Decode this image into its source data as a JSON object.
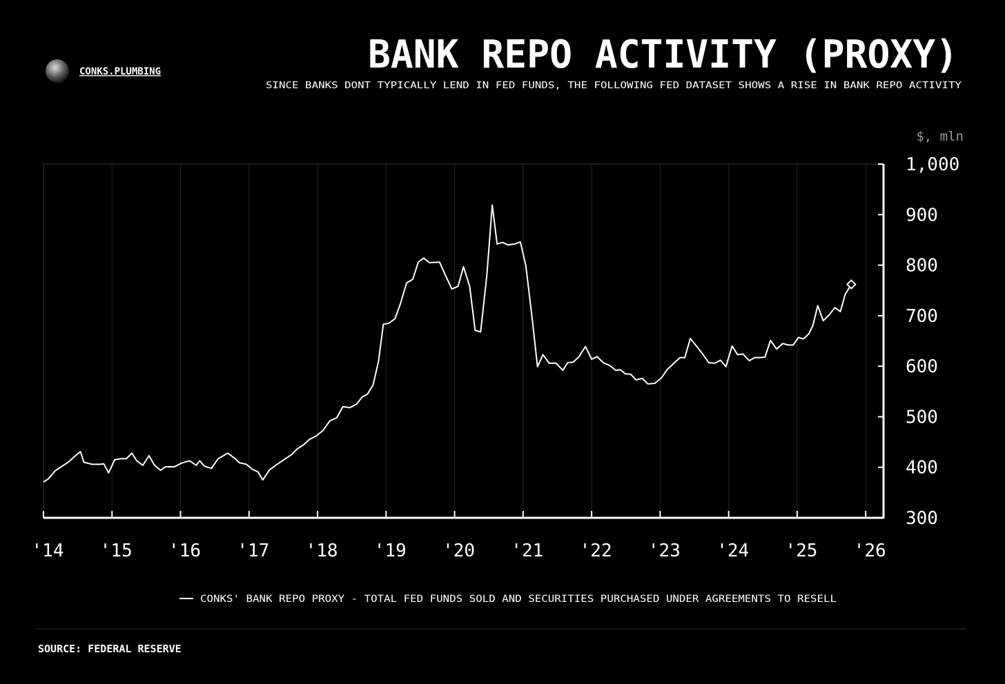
{
  "chart_data": {
    "type": "line",
    "brand": "CONKS.PLUMBING",
    "title": "BANK REPO ACTIVITY (PROXY)",
    "subtitle": "SINCE BANKS DONT TYPICALLY LEND IN FED FUNDS, THE FOLLOWING FED DATASET SHOWS A RISE IN BANK REPO ACTIVITY",
    "y_label": "$, mln",
    "source": "SOURCE: FEDERAL RESERVE",
    "x": [
      2014.0,
      2014.07,
      2014.17,
      2014.27,
      2014.37,
      2014.45,
      2014.54,
      2014.59,
      2014.71,
      2014.83,
      2014.88,
      2014.95,
      2015.04,
      2015.13,
      2015.21,
      2015.29,
      2015.36,
      2015.45,
      2015.54,
      2015.62,
      2015.71,
      2015.78,
      2015.91,
      2016.01,
      2016.13,
      2016.23,
      2016.28,
      2016.35,
      2016.45,
      2016.55,
      2016.69,
      2016.8,
      2016.86,
      2016.96,
      2017.05,
      2017.13,
      2017.2,
      2017.3,
      2017.4,
      2017.51,
      2017.62,
      2017.7,
      2017.8,
      2017.88,
      2017.98,
      2018.08,
      2018.18,
      2018.28,
      2018.37,
      2018.47,
      2018.57,
      2018.65,
      2018.73,
      2018.81,
      2018.89,
      2018.96,
      2019.04,
      2019.13,
      2019.21,
      2019.3,
      2019.39,
      2019.47,
      2019.55,
      2019.63,
      2019.78,
      2019.87,
      2019.96,
      2020.05,
      2020.13,
      2020.22,
      2020.3,
      2020.38,
      2020.47,
      2020.55,
      2020.62,
      2020.7,
      2020.78,
      2020.88,
      2020.96,
      2021.04,
      2021.13,
      2021.21,
      2021.29,
      2021.38,
      2021.48,
      2021.58,
      2021.65,
      2021.73,
      2021.81,
      2021.91,
      2022.0,
      2022.08,
      2022.17,
      2022.27,
      2022.35,
      2022.42,
      2022.49,
      2022.57,
      2022.65,
      2022.74,
      2022.82,
      2022.92,
      2023.02,
      2023.1,
      2023.2,
      2023.29,
      2023.36,
      2023.44,
      2023.53,
      2023.61,
      2023.71,
      2023.8,
      2023.88,
      2023.96,
      2024.05,
      2024.13,
      2024.21,
      2024.3,
      2024.38,
      2024.45,
      2024.53,
      2024.61,
      2024.7,
      2024.79,
      2024.87,
      2024.94,
      2025.02,
      2025.09,
      2025.17,
      2025.23,
      2025.3,
      2025.38,
      2025.47,
      2025.55,
      2025.63,
      2025.7,
      2025.79
    ],
    "series": [
      {
        "name": "CONKS' BANK REPO PROXY - TOTAL FED FUNDS SOLD AND SECURITIES PURCHASED UNDER AGREEMENTS TO RESELL",
        "color": "#ffffff",
        "values": [
          371,
          377,
          393,
          402,
          411,
          421,
          431,
          410,
          406,
          406,
          407,
          389,
          415,
          417,
          417,
          428,
          413,
          404,
          423,
          404,
          394,
          401,
          401,
          408,
          413,
          404,
          413,
          402,
          398,
          417,
          428,
          417,
          409,
          406,
          396,
          391,
          375,
          395,
          405,
          415,
          425,
          436,
          445,
          455,
          462,
          473,
          492,
          498,
          520,
          518,
          525,
          539,
          545,
          563,
          610,
          683,
          685,
          694,
          724,
          765,
          772,
          806,
          814,
          805,
          806,
          779,
          753,
          758,
          797,
          758,
          671,
          668,
          779,
          919,
          842,
          845,
          840,
          842,
          846,
          799,
          697,
          599,
          623,
          606,
          606,
          592,
          607,
          608,
          618,
          639,
          614,
          619,
          607,
          601,
          592,
          593,
          585,
          584,
          573,
          576,
          565,
          566,
          577,
          593,
          606,
          617,
          617,
          655,
          640,
          626,
          607,
          606,
          612,
          599,
          640,
          623,
          624,
          611,
          617,
          617,
          618,
          651,
          634,
          645,
          642,
          642,
          657,
          654,
          664,
          681,
          720,
          690,
          702,
          716,
          708,
          742,
          762
        ]
      }
    ],
    "xlim": [
      2014,
      2026.26
    ],
    "xticks": [
      {
        "value": 2014,
        "label": "'14"
      },
      {
        "value": 2015,
        "label": "'15"
      },
      {
        "value": 2016,
        "label": "'16"
      },
      {
        "value": 2017,
        "label": "'17"
      },
      {
        "value": 2018,
        "label": "'18"
      },
      {
        "value": 2019,
        "label": "'19"
      },
      {
        "value": 2020,
        "label": "'20"
      },
      {
        "value": 2021,
        "label": "'21"
      },
      {
        "value": 2022,
        "label": "'22"
      },
      {
        "value": 2023,
        "label": "'23"
      },
      {
        "value": 2024,
        "label": "'24"
      },
      {
        "value": 2025,
        "label": "'25"
      },
      {
        "value": 2026,
        "label": "'26"
      }
    ],
    "ylim": [
      300,
      1000
    ],
    "yticks": [
      300,
      400,
      500,
      600,
      700,
      800,
      900,
      {
        "value": 1000,
        "label": "1,000"
      }
    ],
    "grid": true,
    "legend": "bottom"
  }
}
